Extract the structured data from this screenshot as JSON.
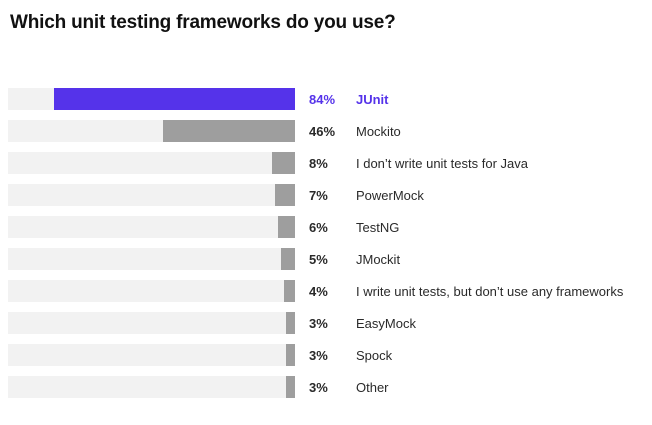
{
  "title": "Which unit testing frameworks do you use?",
  "colors": {
    "highlight": "#5533ea",
    "bar": "#9e9e9e",
    "track": "#f2f2f2",
    "text": "#2a2a2a"
  },
  "chart_data": {
    "type": "bar",
    "orientation": "horizontal",
    "bar_alignment": "right",
    "title": "Which unit testing frameworks do you use?",
    "categories": [
      "JUnit",
      "Mockito",
      "I don’t write unit tests for Java",
      "PowerMock",
      "TestNG",
      "JMockit",
      "I write unit tests, but don’t use any frameworks",
      "EasyMock",
      "Spock",
      "Other"
    ],
    "values": [
      84,
      46,
      8,
      7,
      6,
      5,
      4,
      3,
      3,
      3
    ],
    "value_suffix": "%",
    "highlight_index": 0,
    "xlim": [
      0,
      100
    ],
    "grid": false,
    "legend": false
  }
}
